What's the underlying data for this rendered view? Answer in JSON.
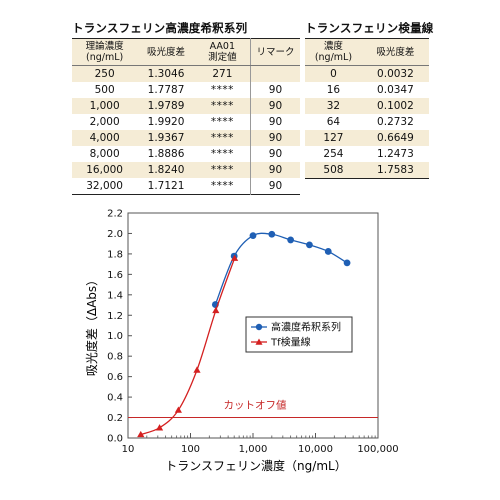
{
  "table_dilution": {
    "title": "トランスフェリン高濃度希釈系列",
    "headers": [
      "理論濃度\n(ng/mL)",
      "吸光度差",
      "AA01\n測定値",
      "リマーク"
    ],
    "rows": [
      [
        "250",
        "1.3046",
        "271",
        ""
      ],
      [
        "500",
        "1.7787",
        "****",
        "90"
      ],
      [
        "1,000",
        "1.9789",
        "****",
        "90"
      ],
      [
        "2,000",
        "1.9920",
        "****",
        "90"
      ],
      [
        "4,000",
        "1.9367",
        "****",
        "90"
      ],
      [
        "8,000",
        "1.8886",
        "****",
        "90"
      ],
      [
        "16,000",
        "1.8240",
        "****",
        "90"
      ],
      [
        "32,000",
        "1.7121",
        "****",
        "90"
      ]
    ]
  },
  "table_calibration": {
    "title": "トランスフェリン検量線",
    "headers": [
      "濃度\n(ng/mL)",
      "吸光度差"
    ],
    "rows": [
      [
        "0",
        "0.0032"
      ],
      [
        "16",
        "0.0347"
      ],
      [
        "32",
        "0.1002"
      ],
      [
        "64",
        "0.2732"
      ],
      [
        "127",
        "0.6649"
      ],
      [
        "254",
        "1.2473"
      ],
      [
        "508",
        "1.7583"
      ]
    ]
  },
  "chart_data": {
    "type": "line",
    "xlabel": "トランスフェリン濃度（ng/mL）",
    "ylabel": "吸光度差（ΔAbs）",
    "xscale": "log",
    "xlim": [
      10,
      100000
    ],
    "ylim": [
      0,
      2.2
    ],
    "xticks": [
      10,
      100,
      1000,
      10000,
      100000
    ],
    "xtick_labels": [
      "10",
      "100",
      "1,000",
      "10,000",
      "100,000"
    ],
    "yticks": [
      0,
      0.2,
      0.4,
      0.6,
      0.8,
      1.0,
      1.2,
      1.4,
      1.6,
      1.8,
      2.0,
      2.2
    ],
    "ytick_labels": [
      "0.0",
      "0.2",
      "0.4",
      "0.6",
      "0.8",
      "1.0",
      "1.2",
      "1.4",
      "1.6",
      "1.8",
      "2.0",
      "2.2"
    ],
    "grid": false,
    "legend_position": "right",
    "series": [
      {
        "name": "高濃度希釈系列",
        "color": "#1f5fb4",
        "marker": "circle",
        "x": [
          250,
          500,
          1000,
          2000,
          4000,
          8000,
          16000,
          32000
        ],
        "y": [
          1.3046,
          1.7787,
          1.9789,
          1.992,
          1.9367,
          1.8886,
          1.824,
          1.7121
        ]
      },
      {
        "name": "Tf検量線",
        "color": "#d42020",
        "marker": "triangle",
        "x": [
          16,
          32,
          64,
          127,
          254,
          508
        ],
        "y": [
          0.0347,
          0.1002,
          0.2732,
          0.6649,
          1.2473,
          1.7583
        ]
      }
    ],
    "cutoff": {
      "label": "カットオフ値",
      "y": 0.2,
      "color": "#c62828"
    }
  }
}
